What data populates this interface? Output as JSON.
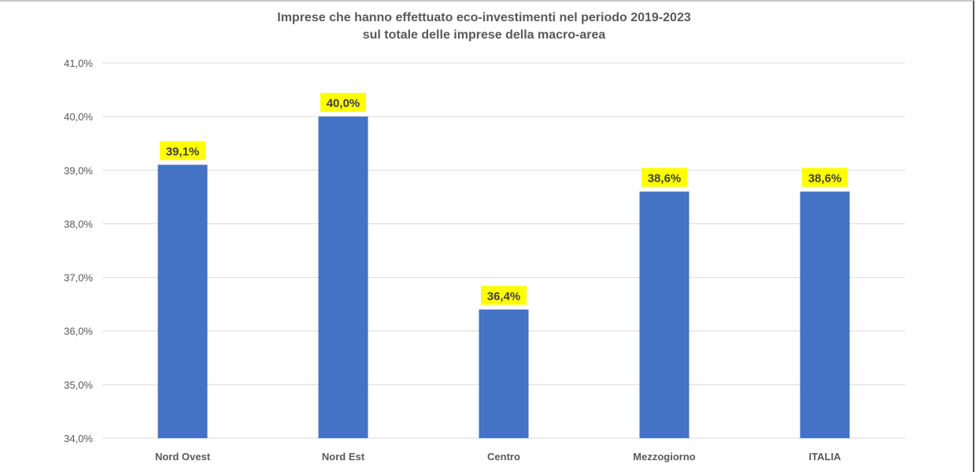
{
  "chart_data": {
    "type": "bar",
    "title": [
      "Imprese che hanno effettuato eco-investimenti nel periodo 2019-2023",
      "sul totale delle imprese della macro-area"
    ],
    "categories": [
      "Nord Ovest",
      "Nord Est",
      "Centro",
      "Mezzogiorno",
      "ITALIA"
    ],
    "values": [
      39.1,
      40.0,
      36.4,
      38.6,
      38.6
    ],
    "data_labels": [
      "39,1%",
      "40,0%",
      "36,4%",
      "38,6%",
      "38,6%"
    ],
    "ylim": [
      34,
      41
    ],
    "yticks": [
      34,
      35,
      36,
      37,
      38,
      39,
      40,
      41
    ],
    "ytick_labels": [
      "34,0%",
      "35,0%",
      "36,0%",
      "37,0%",
      "38,0%",
      "39,0%",
      "40,0%",
      "41,0%"
    ],
    "xlabel": "",
    "ylabel": "",
    "grid": true,
    "legend": "none",
    "colors": {
      "bar": "#4472C4",
      "label_background": "#FFFF00",
      "label_text": "#404040",
      "gridline": "#D9D9D9",
      "axis_text": "#595959"
    }
  }
}
